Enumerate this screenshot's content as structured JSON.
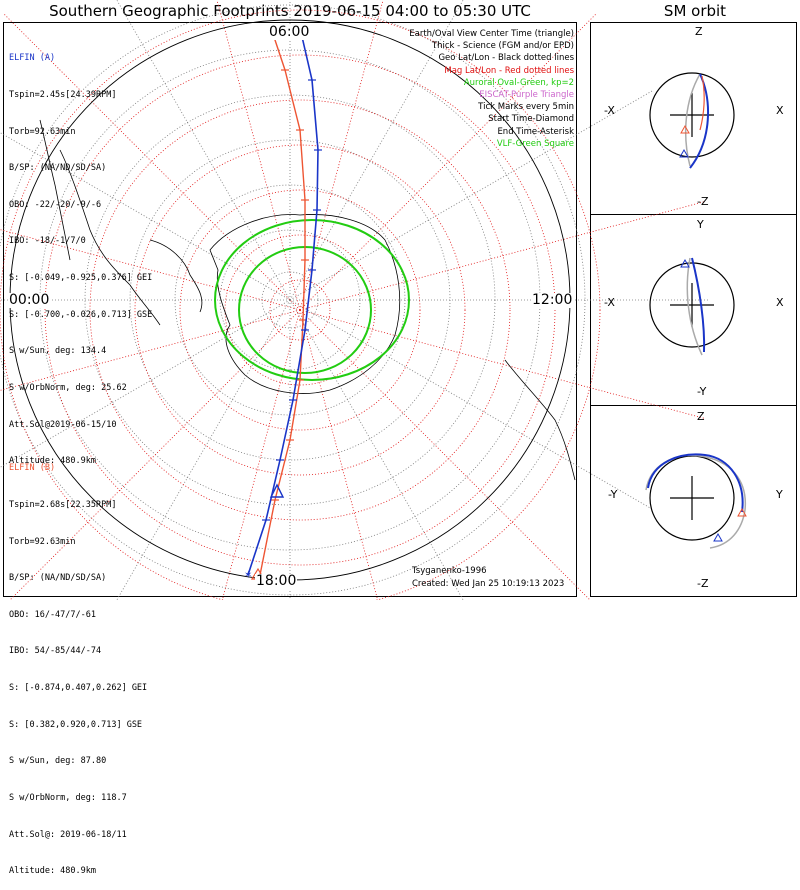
{
  "title": "Southern Geographic Footprints 2019-06-15 04:00 to 05:30 UTC",
  "side_title": "SM orbit",
  "elfin_a": {
    "name": "ELFIN (A)",
    "lines": [
      "Tspin=2.45s[24.39RPM]",
      "Torb=92.63min",
      "B/SP: (NA/ND/SD/SA)",
      "OBO: -22/-20/-9/-6",
      "IBO: -18/-1/7/0",
      "S: [-0.049,-0.925,0.376] GEI",
      "S: [-0.700,-0.026,0.713] GSE",
      "S w/Sun, deg: 134.4",
      "S w/OrbNorm, deg: 25.62",
      "Att.Sol@2019-06-15/10",
      "Altitude: 480.9km"
    ],
    "color": "#1a35c8"
  },
  "elfin_b": {
    "name": "ELFIN (B)",
    "lines": [
      "Tspin=2.68s[22.35RPM]",
      "Torb=92.63min",
      "B/SP: (NA/ND/SD/SA)",
      "OBO: 16/-47/7/-61",
      "IBO: 54/-85/44/-74",
      "S: [-0.874,0.407,0.262] GEI",
      "S: [0.382,0.920,0.713] GSE",
      "S w/Sun, deg: 87.80",
      "S w/OrbNorm, deg: 118.7",
      "Att.Sol@: 2019-06-18/11",
      "Altitude: 480.9km"
    ],
    "color": "#ee5533"
  },
  "legend": [
    {
      "text": "Earth/Oval View Center Time (triangle)",
      "color": "#000000"
    },
    {
      "text": "Thick - Science (FGM and/or EPD)",
      "color": "#000000"
    },
    {
      "text": "Geo Lat/Lon - Black dotted lines",
      "color": "#000000"
    },
    {
      "text": "Mag Lat/Lon - Red dotted lines",
      "color": "#e01010"
    },
    {
      "text": "Auroral Oval-Green, kp=2",
      "color": "#22cc11"
    },
    {
      "text": "EISCAT-Purple Triangle",
      "color": "#cc66cc"
    },
    {
      "text": "Tick Marks every 5min",
      "color": "#000000"
    },
    {
      "text": "Start Time-Diamond",
      "color": "#000000"
    },
    {
      "text": "End Time-Asterisk",
      "color": "#000000"
    },
    {
      "text": "VLF-Green Square",
      "color": "#22cc11"
    }
  ],
  "hour_labels": {
    "top": "06:00",
    "left": "00:00",
    "right": "12:00",
    "bottom": "18:00"
  },
  "credits": {
    "model": "Tsyganenko-1996",
    "created": "Created: Wed Jan 25 10:19:13 2023"
  },
  "sm_panels": [
    {
      "top": "Z",
      "bottom": "-Z",
      "left": "-X",
      "right": "X"
    },
    {
      "top": "Y",
      "bottom": "-Y",
      "left": "-X",
      "right": "X"
    },
    {
      "top": "Z",
      "bottom": "-Z",
      "left": "-Y",
      "right": "Y"
    }
  ]
}
